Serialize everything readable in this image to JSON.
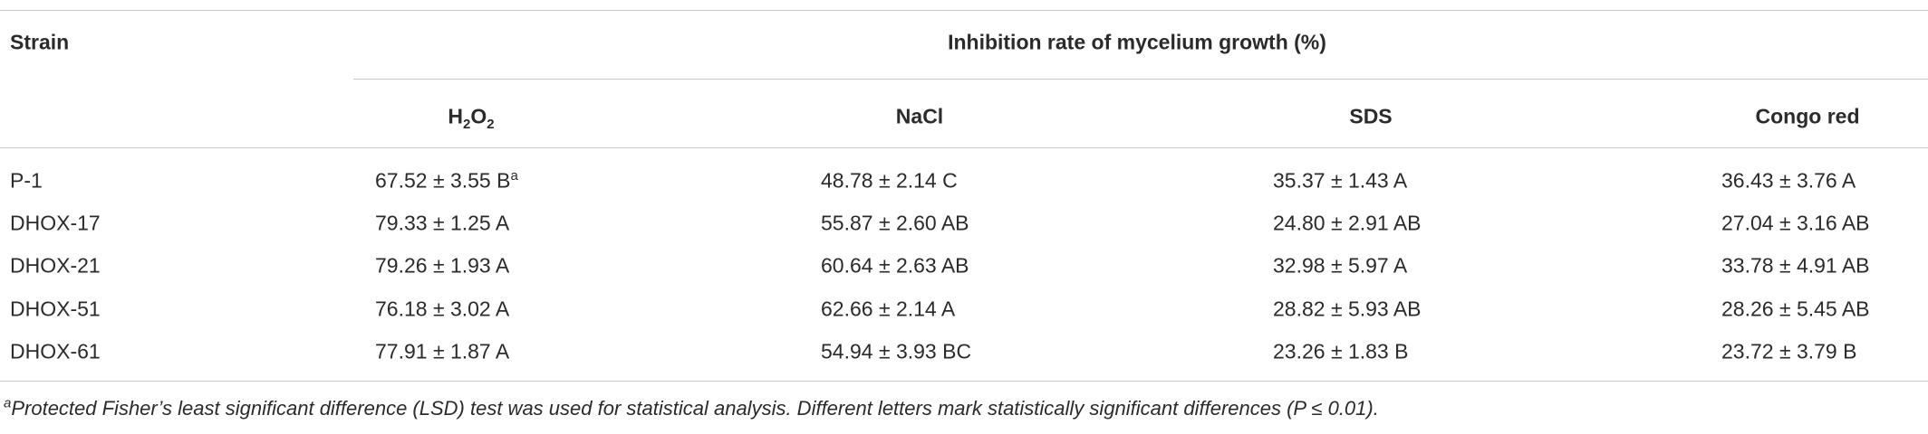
{
  "table": {
    "header": {
      "strain": "Strain",
      "group": "Inhibition rate of mycelium growth (%)",
      "columns": [
        {
          "parts": [
            "H",
            "2",
            "O",
            "2"
          ]
        },
        {
          "text": "NaCl"
        },
        {
          "text": "SDS"
        },
        {
          "text": "Congo red"
        }
      ]
    },
    "rows": [
      [
        "P-1",
        {
          "text": "67.52 ± 3.55 B",
          "sup": "a"
        },
        "48.78 ± 2.14 C",
        "35.37 ± 1.43 A",
        "36.43 ± 3.76 A"
      ],
      [
        "DHOX-17",
        "79.33 ± 1.25 A",
        "55.87 ± 2.60 AB",
        "24.80 ± 2.91 AB",
        "27.04 ± 3.16 AB"
      ],
      [
        "DHOX-21",
        "79.26 ± 1.93 A",
        "60.64 ± 2.63 AB",
        "32.98 ± 5.97 A",
        "33.78 ± 4.91 AB"
      ],
      [
        "DHOX-51",
        "76.18 ± 3.02 A",
        "62.66 ± 2.14 A",
        "28.82 ± 5.93 AB",
        "28.26 ± 5.45 AB"
      ],
      [
        "DHOX-61",
        "77.91 ± 1.87 A",
        "54.94 ± 3.93 BC",
        "23.26 ± 1.83 B",
        "23.72 ± 3.79 B"
      ]
    ],
    "footnote": {
      "mark": "a",
      "text": "Protected Fisher’s least significant difference (LSD) test was used for statistical analysis. Different letters mark statistically significant differences (P ≤ 0.01)."
    }
  }
}
